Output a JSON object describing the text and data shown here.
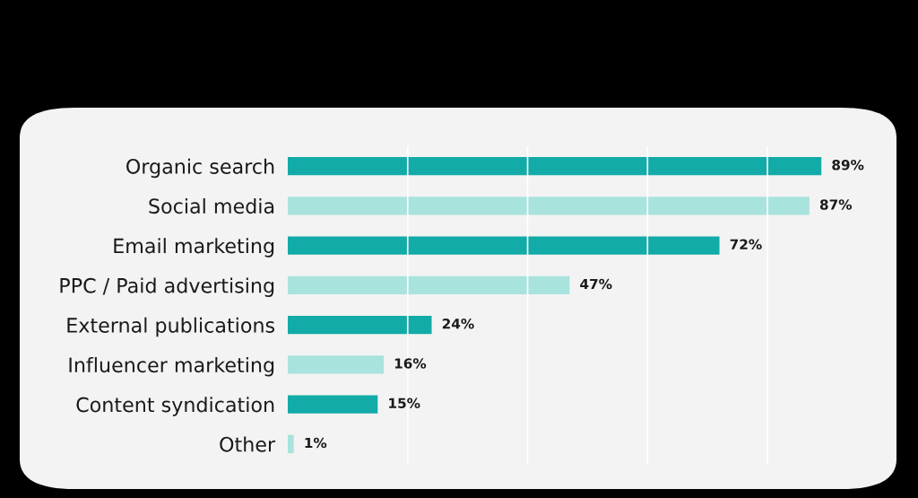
{
  "chart_data": {
    "type": "bar",
    "orientation": "horizontal",
    "categories": [
      "Organic search",
      "Social media",
      "Email marketing",
      "PPC / Paid advertising",
      "External publications",
      "Influencer marketing",
      "Content syndication",
      "Other"
    ],
    "values": [
      89,
      87,
      72,
      47,
      24,
      16,
      15,
      1
    ],
    "colors": [
      "#12aba7",
      "#a8e3dd",
      "#12aba7",
      "#a8e3dd",
      "#12aba7",
      "#a8e3dd",
      "#12aba7",
      "#a8e3dd"
    ],
    "value_labels": [
      "89%",
      "87%",
      "72%",
      "47%",
      "24%",
      "16%",
      "15%",
      "1%"
    ],
    "xticks": [
      {
        "value": 20,
        "label": null
      },
      {
        "value": 40,
        "label": null
      },
      {
        "value": 60,
        "label": null
      },
      {
        "value": 80,
        "label": null
      }
    ],
    "grid": "x",
    "tick_labels": "y"
  }
}
